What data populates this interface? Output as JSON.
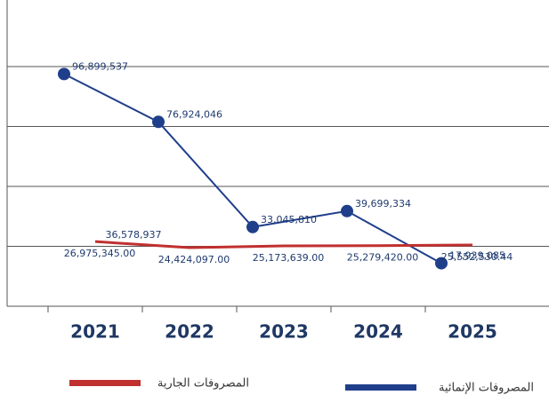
{
  "chart_data": {
    "type": "line",
    "categories": [
      "2021",
      "2022",
      "2023",
      "2024",
      "2025"
    ],
    "series": [
      {
        "name": "المصروفات الإنمائية",
        "color": "#1f3f8a",
        "values": [
          96899537,
          76924046,
          33045810,
          39699334,
          17939085
        ],
        "value_labels": [
          "96,899,537",
          "76,924,046",
          "33,045,810",
          "39,699,334",
          "17,939,085"
        ]
      },
      {
        "name": "المصروفات الجارية",
        "color": "#c0302f",
        "values": [
          26975345,
          24424097,
          25173639,
          25279420,
          25552530.44
        ],
        "value_labels": [
          "26,975,345.00",
          "24,424,097.00",
          "25,173,639.00",
          "25,279,420.00",
          "25,552,530.44"
        ]
      }
    ],
    "annotations": [
      "36,578,937"
    ],
    "ylim": [
      0,
      100000000
    ],
    "yticks": [
      0,
      25000000,
      50000000,
      75000000,
      100000000
    ],
    "grid": true
  }
}
